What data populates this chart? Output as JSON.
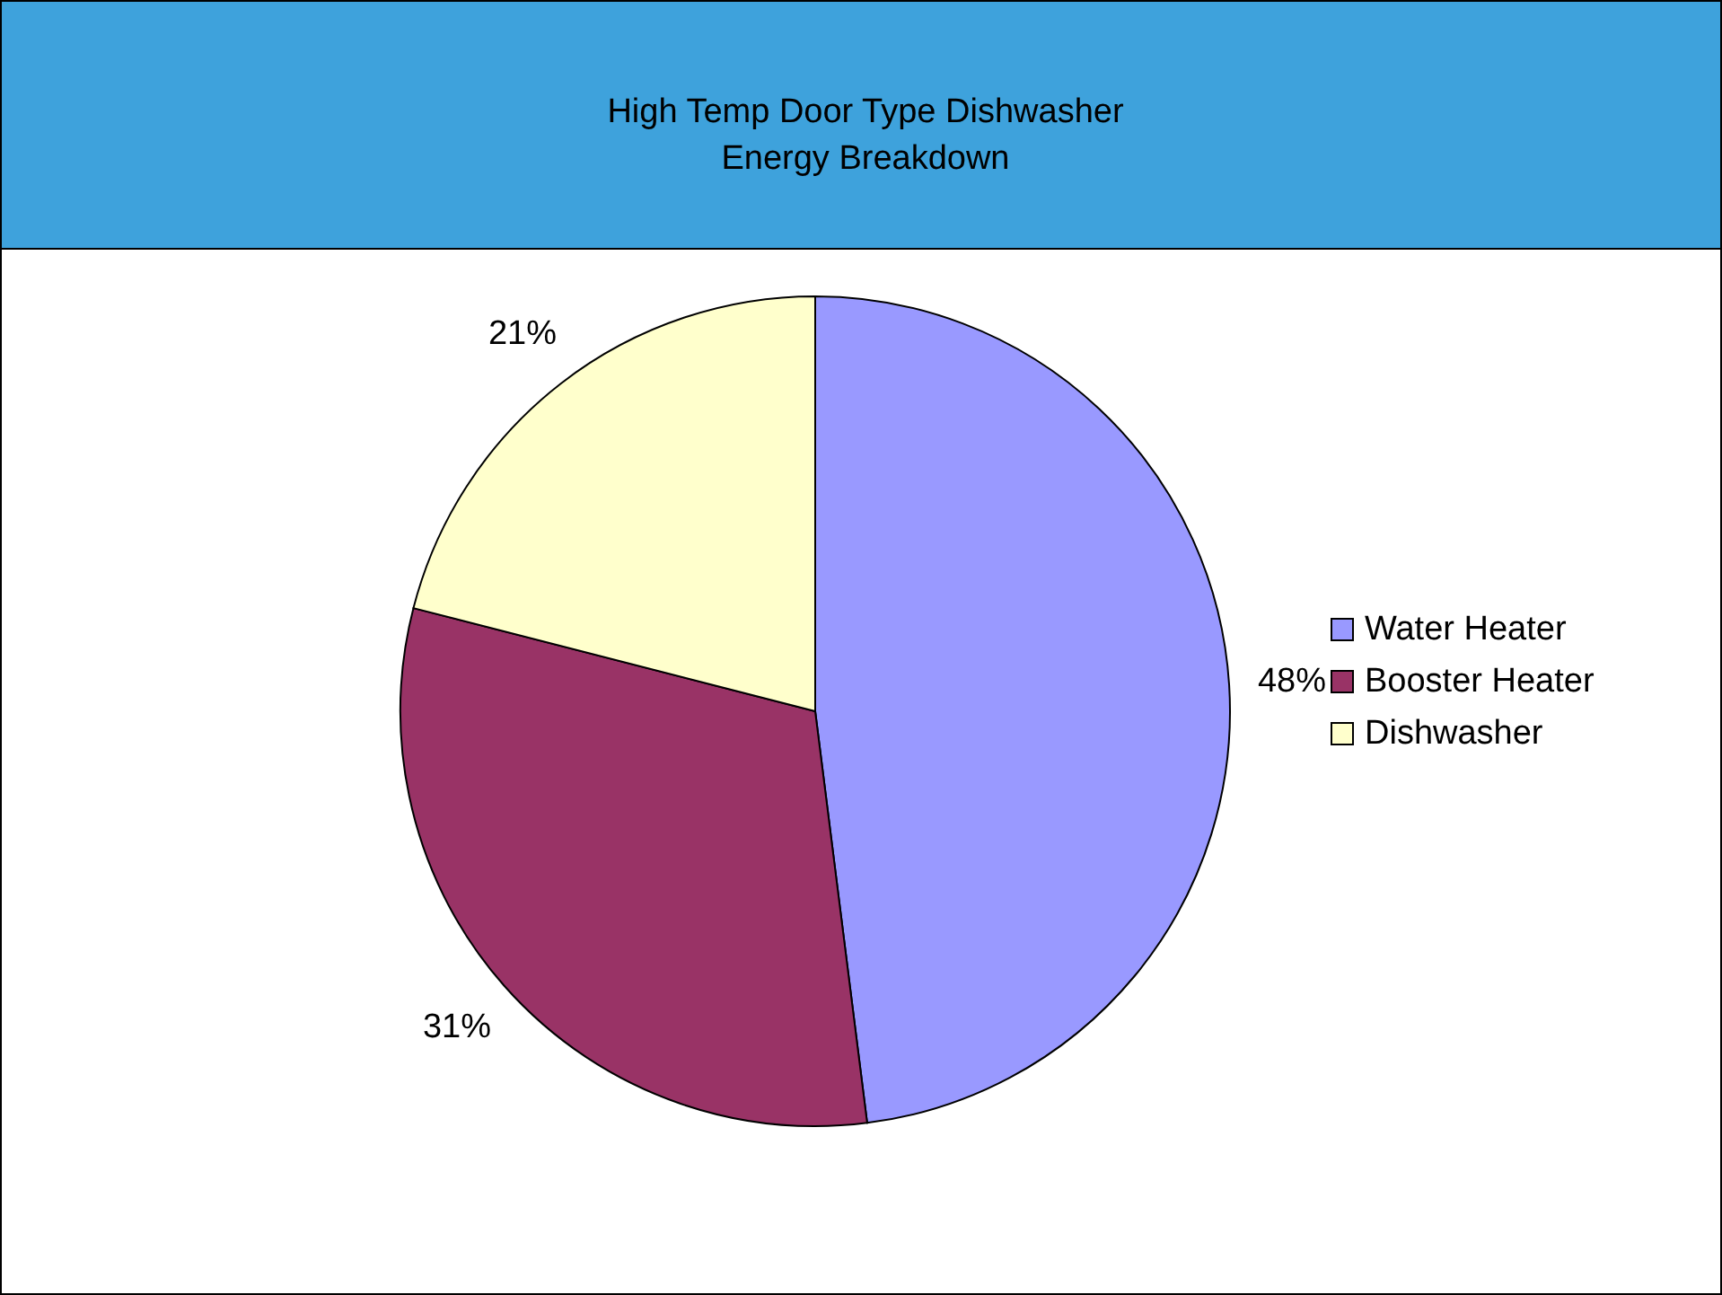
{
  "chart_data": {
    "type": "pie",
    "title": "High Temp Door Type Dishwasher\nEnergy Breakdown",
    "categories": [
      "Water Heater",
      "Booster Heater",
      "Dishwasher"
    ],
    "values": [
      48,
      31,
      21
    ],
    "colors": [
      "#9999ff",
      "#993366",
      "#ffffcc"
    ],
    "value_labels": [
      "48%",
      "31%",
      "21%"
    ],
    "legend": "right"
  }
}
